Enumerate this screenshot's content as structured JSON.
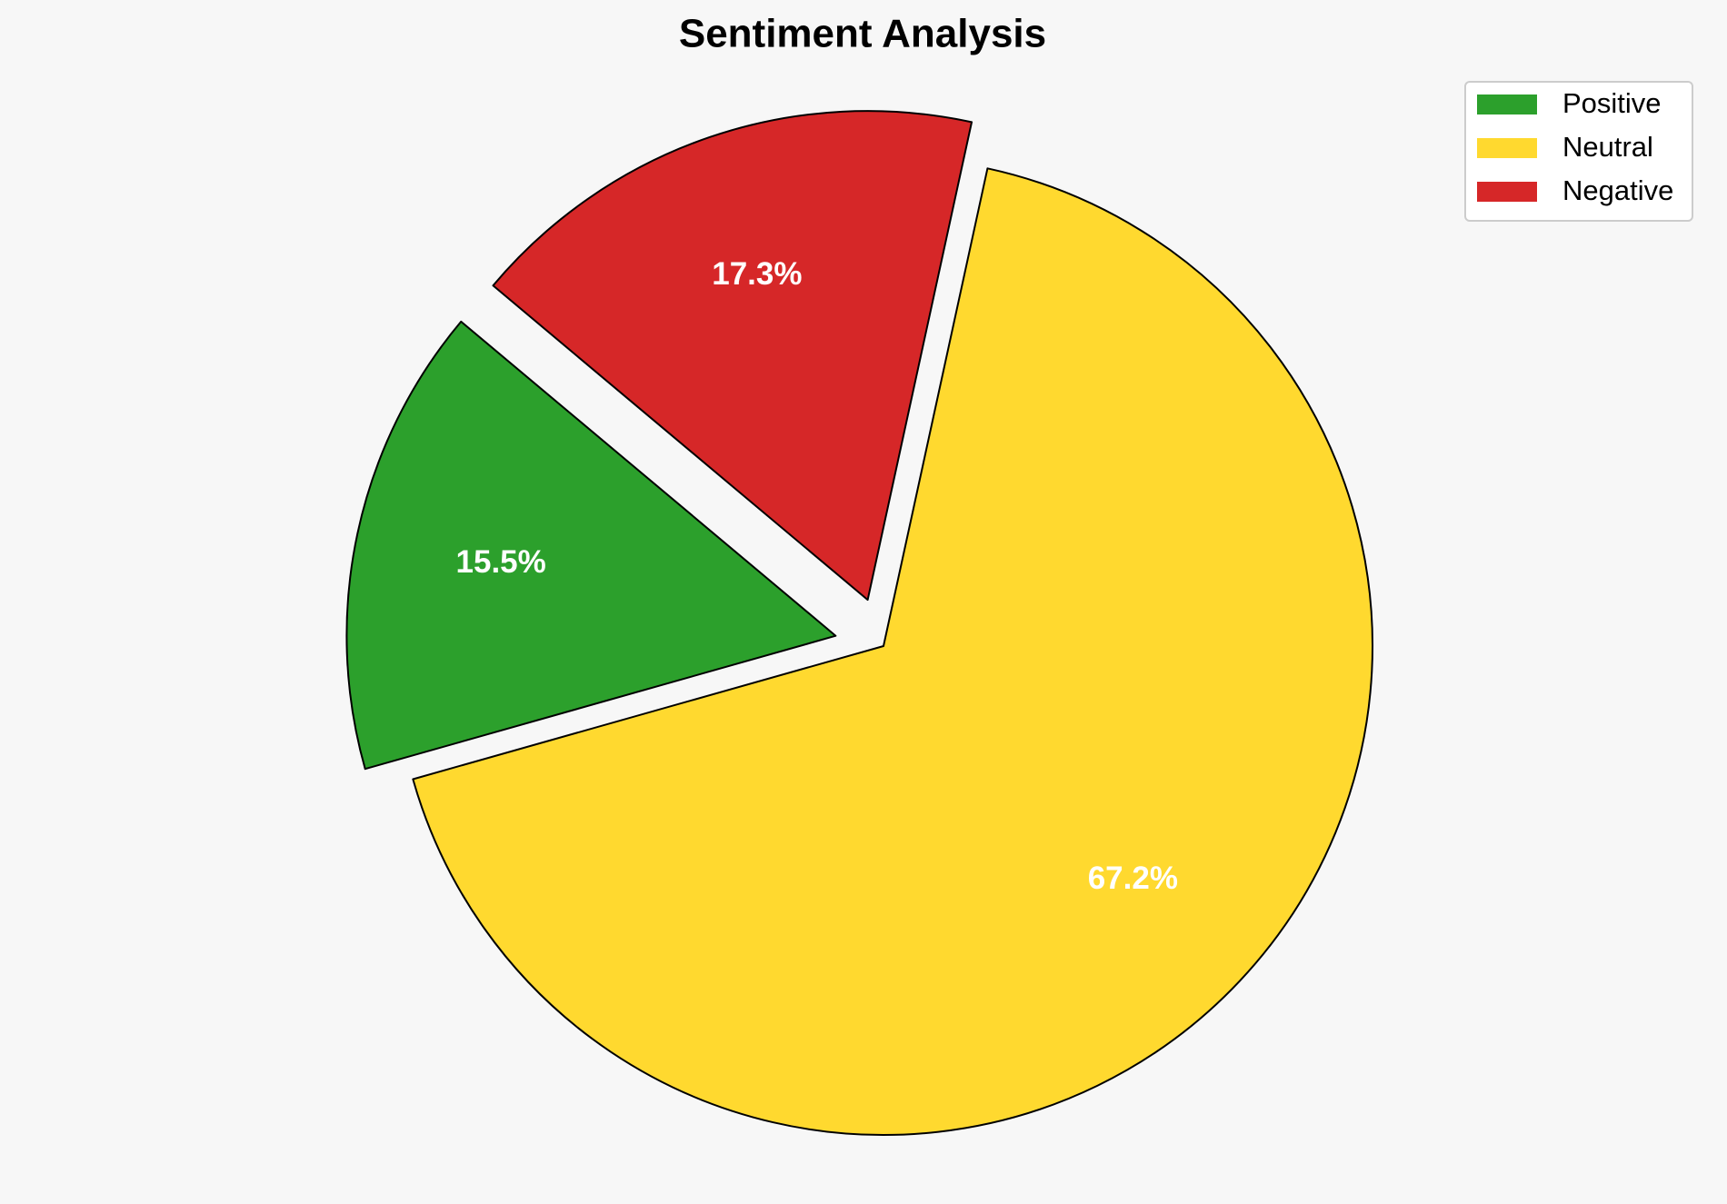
{
  "chart_data": {
    "type": "pie",
    "title": "Sentiment Analysis",
    "categories": [
      "Positive",
      "Neutral",
      "Negative"
    ],
    "values": [
      15.5,
      67.2,
      17.3
    ],
    "value_labels": [
      "15.5%",
      "67.2%",
      "17.3%"
    ],
    "colors": [
      "#2ca02c",
      "#ffd92f",
      "#d62728"
    ],
    "explode": [
      0.1,
      0,
      0.1
    ],
    "legend": "upper right"
  }
}
